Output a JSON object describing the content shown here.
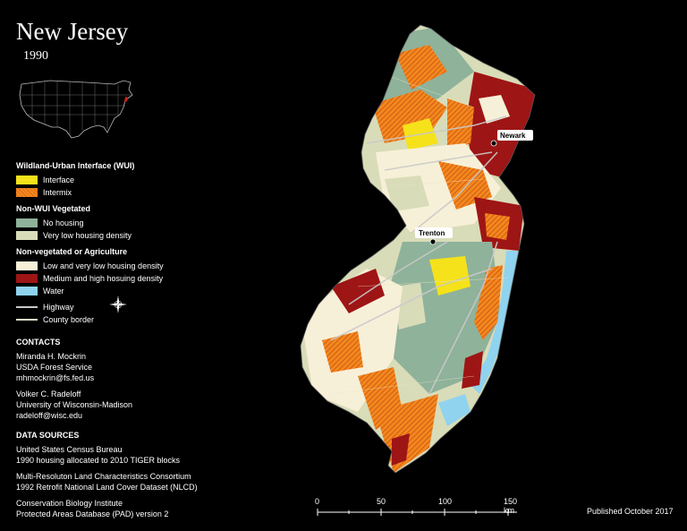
{
  "title": "New Jersey",
  "year": "1990",
  "legend": {
    "wui": {
      "heading": "Wildland-Urban Interface (WUI)",
      "items": [
        {
          "label": "Interface",
          "color": "#f5e21a"
        },
        {
          "label": "Intermix",
          "color": "#f08a1c"
        }
      ]
    },
    "nonwui_veg": {
      "heading": "Non-WUI Vegetated",
      "items": [
        {
          "label": "No housing",
          "color": "#8fb29a"
        },
        {
          "label": "Very low housing density",
          "color": "#d9dcb8"
        }
      ]
    },
    "nonveg": {
      "heading": "Non-vegetated or Agriculture",
      "items": [
        {
          "label": "Low and very low housing density",
          "color": "#f7f0d8"
        },
        {
          "label": "Medium and high hosuing density",
          "color": "#9e1515"
        },
        {
          "label": "Water",
          "color": "#8fd3ef"
        }
      ]
    },
    "lines": [
      {
        "label": "Highway",
        "color": "#c9c9c9"
      },
      {
        "label": "County border",
        "color": "#e6e6c8"
      }
    ]
  },
  "contacts": {
    "heading": "CONTACTS",
    "person1": [
      "Miranda H. Mockrin",
      "USDA Forest Service",
      "mhmockrin@fs.fed.us"
    ],
    "person2": [
      "Volker C. Radeloff",
      "University of Wisconsin-Madison",
      "radeloff@wisc.edu"
    ]
  },
  "sources": {
    "heading": "DATA SOURCES",
    "src1": [
      "United States Census Bureau",
      "1990 housing allocated to 2010 TIGER blocks"
    ],
    "src2": [
      "Multi-Resoluton Land Characteristics Consortium",
      "1992 Retrofit National Land Cover Dataset (NLCD)"
    ],
    "src3": [
      "Conservation Biology Institute",
      "Protected Areas Database (PAD) version 2"
    ]
  },
  "cities": {
    "newark": "Newark",
    "trenton": "Trenton"
  },
  "scale": {
    "labels": [
      "0",
      "50",
      "100",
      "150 km"
    ]
  },
  "published": "Published October 2017"
}
